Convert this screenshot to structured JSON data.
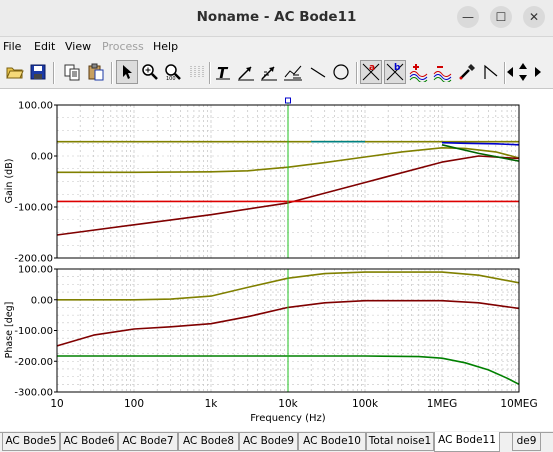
{
  "window": {
    "title": "Noname - AC Bode11",
    "min_glyph": "—",
    "max_glyph": "☐",
    "close_glyph": "✕"
  },
  "menu": {
    "file": "File",
    "edit": "Edit",
    "view": "View",
    "process": "Process",
    "help": "Help"
  },
  "icons": [
    "open-folder-icon",
    "save-icon",
    "copy-icon",
    "paste-icon",
    "pointer-icon",
    "zoom-in-icon",
    "zoom-100-icon",
    "grid-icon",
    "text-tool-icon",
    "arrow-tool-icon",
    "arrow-label-tool-icon",
    "annotation-tool-icon",
    "line-tool-icon",
    "ellipse-tool-icon",
    "cursor-a-icon",
    "cursor-b-icon",
    "wave-add-icon",
    "wave-delete-icon",
    "color-pick-icon",
    "line-style-icon",
    "scroll-left-icon",
    "scroll-up-down-icon",
    "scroll-right-icon"
  ],
  "tabs": [
    "AC Bode5",
    "AC Bode6",
    "AC Bode7",
    "AC Bode8",
    "AC Bode9",
    "AC Bode10",
    "Total noise1",
    "AC Bode11",
    "de9"
  ],
  "active_tab": "AC Bode11",
  "chart_data": [
    {
      "type": "line",
      "ylabel": "Gain (dB)",
      "xscale": "log",
      "xlim": [
        10,
        10000000
      ],
      "ylim": [
        -200,
        100
      ],
      "yticks": [
        "100.00",
        "0.00",
        "-100.00",
        "-200.00"
      ],
      "grid": true,
      "cursor_x": 10000,
      "series": [
        {
          "color": "#808000",
          "x": [
            10,
            1000,
            10000,
            100000,
            700000,
            1000000,
            3000000,
            10000000
          ],
          "values": [
            28,
            28,
            28,
            28,
            28,
            28,
            28,
            28
          ]
        },
        {
          "color": "#808000",
          "x": [
            10,
            100,
            1000,
            3000,
            10000,
            30000,
            100000,
            300000,
            1000000,
            2000000,
            5000000,
            10000000
          ],
          "values": [
            -32,
            -32,
            -31,
            -29,
            -22,
            -13,
            -2,
            8,
            16,
            15,
            8,
            -4
          ]
        },
        {
          "color": "#800000",
          "x": [
            10,
            100,
            1000,
            10000,
            100000,
            1000000,
            3000000,
            10000000
          ],
          "values": [
            -155,
            -135,
            -115,
            -92,
            -52,
            -12,
            0,
            -5
          ]
        },
        {
          "color": "#dd0000",
          "x": [
            10,
            10000000
          ],
          "values": [
            -89,
            -89
          ]
        },
        {
          "color": "#006400",
          "x": [
            1000000,
            3000000,
            10000000
          ],
          "values": [
            22,
            5,
            -10
          ]
        },
        {
          "color": "#0000cc",
          "x": [
            1000000,
            2000000,
            5000000,
            10000000
          ],
          "values": [
            26,
            25,
            24,
            22
          ]
        },
        {
          "color": "#008080",
          "x": [
            20000,
            100000
          ],
          "values": [
            28,
            28
          ]
        }
      ]
    },
    {
      "type": "line",
      "ylabel": "Phase [deg]",
      "xlabel": "Frequency (Hz)",
      "xscale": "log",
      "xlim": [
        10,
        10000000
      ],
      "ylim": [
        -300,
        100
      ],
      "yticks": [
        "100.00",
        "0.00",
        "-100.00",
        "-200.00",
        "-300.00"
      ],
      "xticks": [
        "10",
        "100",
        "1k",
        "10k",
        "100k",
        "1MEG",
        "10MEG"
      ],
      "grid": true,
      "cursor_x": 10000,
      "series": [
        {
          "color": "#808000",
          "x": [
            10,
            100,
            300,
            1000,
            3000,
            10000,
            30000,
            100000,
            1000000,
            3000000,
            10000000
          ],
          "values": [
            0,
            0,
            2,
            12,
            40,
            70,
            85,
            90,
            90,
            80,
            55
          ]
        },
        {
          "color": "#800000",
          "x": [
            10,
            30,
            100,
            300,
            1000,
            3000,
            10000,
            30000,
            100000,
            1000000,
            3000000,
            10000000
          ],
          "values": [
            -150,
            -115,
            -95,
            -88,
            -78,
            -55,
            -25,
            -10,
            -3,
            -3,
            -10,
            -28
          ]
        },
        {
          "color": "#008000",
          "x": [
            10,
            1000,
            100000,
            500000,
            1000000,
            2000000,
            4000000,
            7000000,
            10000000
          ],
          "values": [
            -183,
            -183,
            -183,
            -185,
            -190,
            -205,
            -228,
            -255,
            -275
          ]
        }
      ]
    }
  ]
}
